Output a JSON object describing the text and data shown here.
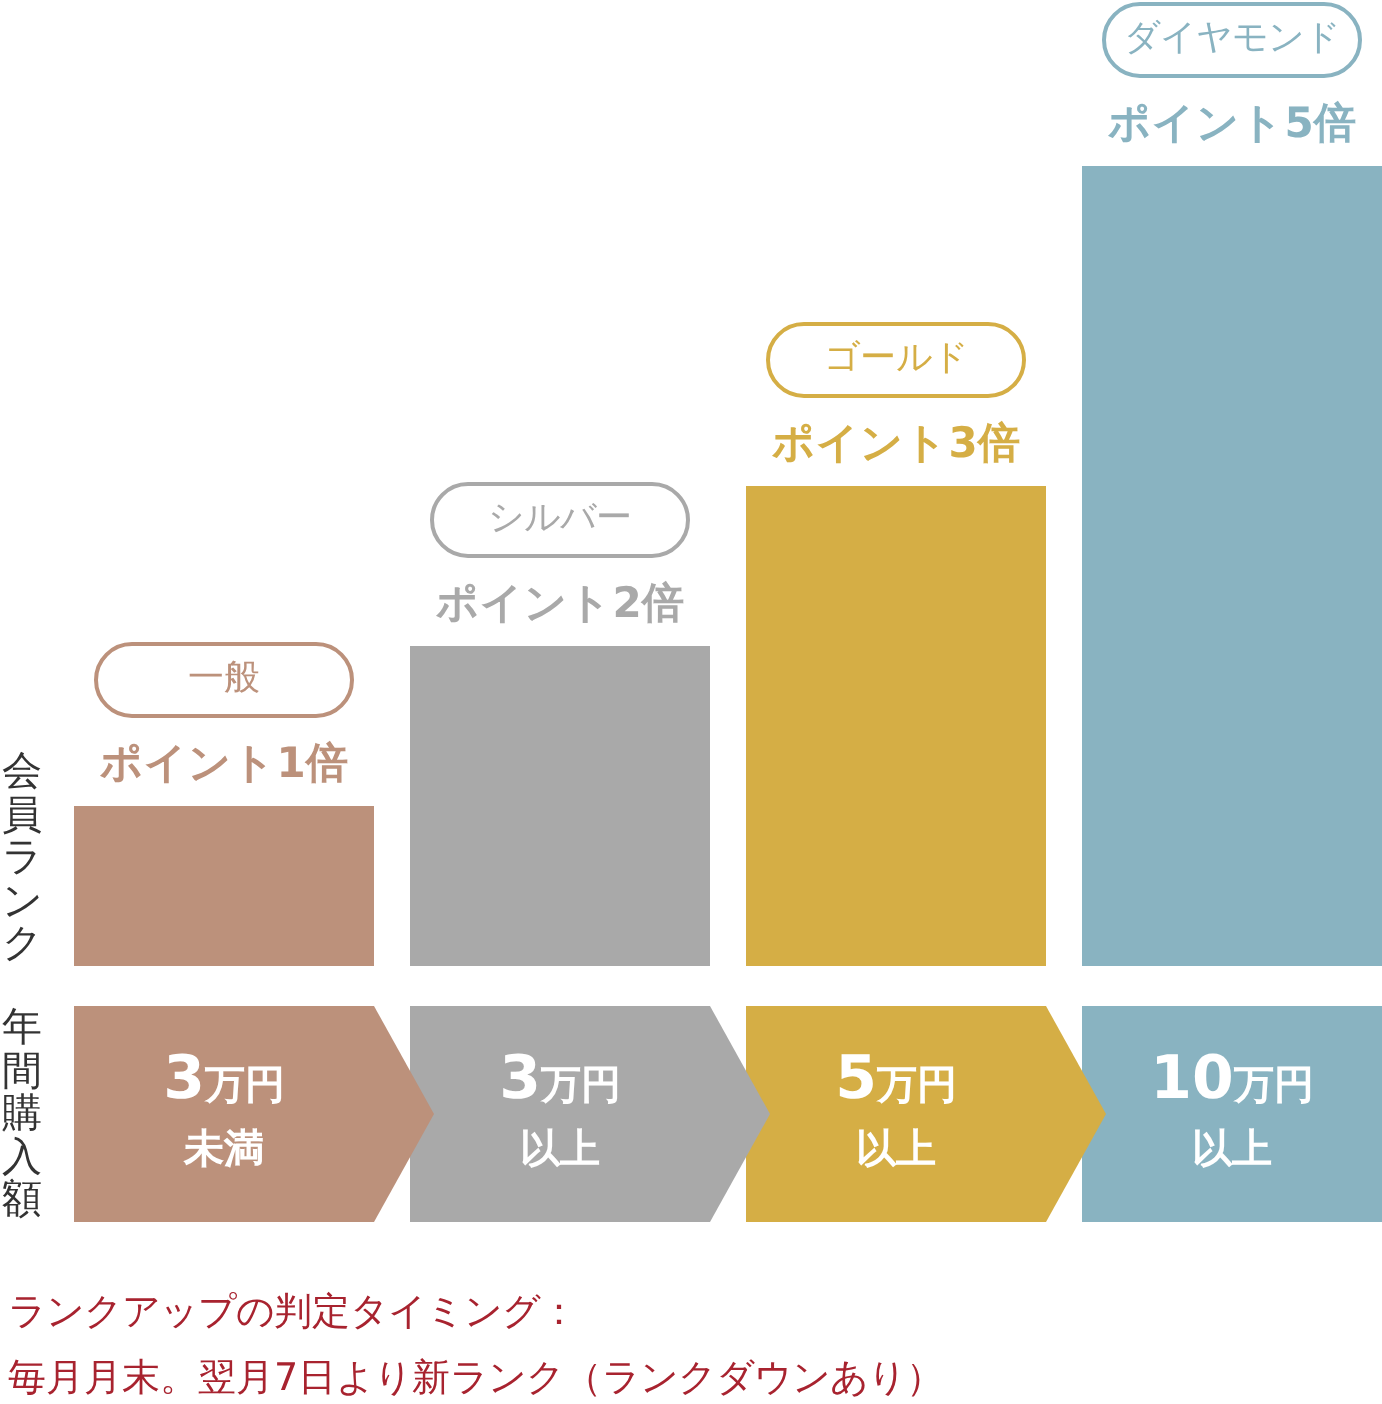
{
  "chart_data": {
    "type": "bar",
    "categories": [
      "3万円未満",
      "3万円以上",
      "5万円以上",
      "10万円以上"
    ],
    "values": [
      1,
      2,
      3,
      5
    ],
    "colors": [
      "#bc917b",
      "#a9a9a9",
      "#d5ae45",
      "#89b3c1"
    ],
    "value_labels": [
      "ポイント1倍",
      "ポイント2倍",
      "ポイント3倍",
      "ポイント5倍"
    ],
    "ylim": [
      0,
      5
    ],
    "tick_labels": "x",
    "ylabel": "会員ランク",
    "xlabel": "年間購入額",
    "annotations": [
      "一般",
      "シルバー",
      "ゴールド",
      "ダイヤモンド",
      "ランクアップの判定タイミング：",
      "毎月月末。翌月7日より新ランク（ランクダウンあり）"
    ]
  }
}
